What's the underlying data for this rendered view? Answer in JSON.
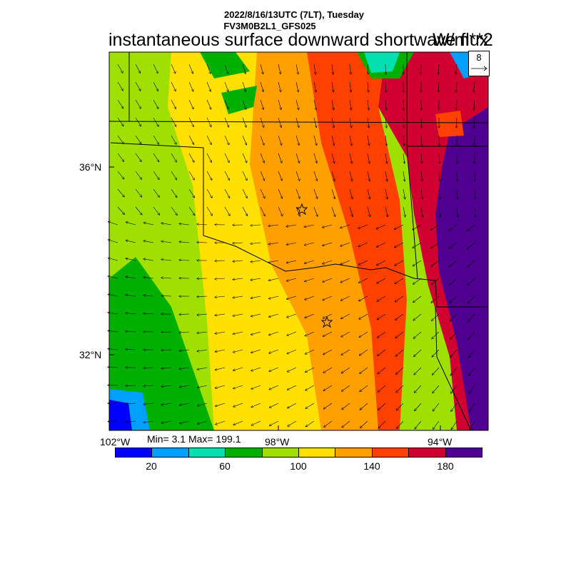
{
  "header": {
    "date_line": "2022/8/16/13UTC (7LT), Tuesday",
    "model_line": "FV3M0B2L1_GFS025",
    "title": "instantaneous surface downward shortwave flux",
    "units": "W/m**2"
  },
  "map": {
    "lat_labels": [
      "36°N",
      "32°N"
    ],
    "lon_labels": [
      "102°W",
      "98°W",
      "94°W"
    ],
    "stats": "Min= 3.1 Max= 199.1",
    "vector_reference": "8",
    "field_min": 3.1,
    "field_max": 199.1,
    "markers": [
      "star",
      "star"
    ]
  },
  "colorbar": {
    "colors": [
      "#0000ff",
      "#00a0ff",
      "#00e0b0",
      "#00b000",
      "#a0e000",
      "#ffe000",
      "#ffa000",
      "#ff4000",
      "#d00030",
      "#500090"
    ],
    "tick_labels": [
      "20",
      "60",
      "100",
      "140",
      "180"
    ]
  }
}
